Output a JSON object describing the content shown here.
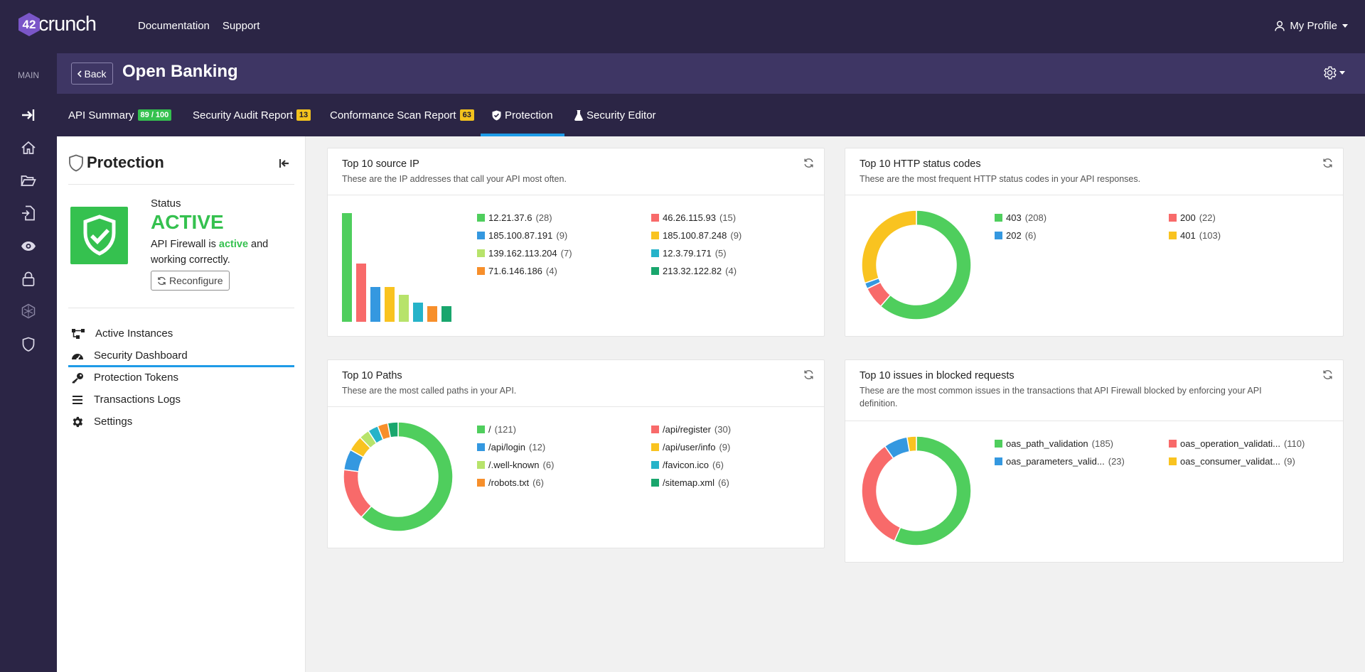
{
  "brand": {
    "logo_mark": "42",
    "logo_text": "crunch"
  },
  "topnav": {
    "documentation": "Documentation",
    "support": "Support",
    "profile": "My Profile"
  },
  "rail": {
    "main_label": "MAIN"
  },
  "header": {
    "back": "Back",
    "title": "Open Banking"
  },
  "tabs": [
    {
      "label": "API Summary",
      "badge": "89 / 100"
    },
    {
      "label": "Security Audit Report",
      "badge": "13"
    },
    {
      "label": "Conformance Scan Report",
      "badge": "63"
    },
    {
      "label": "Protection"
    },
    {
      "label": "Security Editor"
    }
  ],
  "side": {
    "title": "Protection",
    "status_label": "Status",
    "status_value": "ACTIVE",
    "desc_pre": "API Firewall is ",
    "desc_em": "active",
    "desc_post": " and working correctly.",
    "reconfigure": "Reconfigure",
    "menu": [
      "Active Instances",
      "Security Dashboard",
      "Protection Tokens",
      "Transactions Logs",
      "Settings"
    ]
  },
  "cards": {
    "ip": {
      "title": "Top 10 source IP",
      "sub": "These are the IP addresses that call your API most often."
    },
    "http": {
      "title": "Top 10 HTTP status codes",
      "sub": "These are the most frequent HTTP status codes in your API responses."
    },
    "paths": {
      "title": "Top 10 Paths",
      "sub": "These are the most called paths in your API."
    },
    "issues": {
      "title": "Top 10 issues in blocked requests",
      "sub": "These are the most common issues in the transactions that API Firewall blocked by enforcing your API definition."
    }
  },
  "colors": {
    "green": "#4fce5d",
    "red": "#f86a6a",
    "blue": "#3498e0",
    "yellow": "#f9c320",
    "lime": "#b7e36b",
    "teal": "#26b3c9",
    "orange": "#f78f2b",
    "dkgreen": "#19a66d",
    "accent": "#1e9be7"
  },
  "chart_data": [
    {
      "type": "bar",
      "title": "Top 10 source IP",
      "categories": [
        "12.21.37.6",
        "46.26.115.93",
        "185.100.87.191",
        "185.100.87.248",
        "139.162.113.204",
        "12.3.79.171",
        "71.6.146.186",
        "213.32.122.82"
      ],
      "values": [
        28,
        15,
        9,
        9,
        7,
        5,
        4,
        4
      ],
      "colors": [
        "#4fce5d",
        "#f86a6a",
        "#3498e0",
        "#f9c320",
        "#b7e36b",
        "#26b3c9",
        "#f78f2b",
        "#19a66d"
      ]
    },
    {
      "type": "pie",
      "title": "Top 10 HTTP status codes",
      "categories": [
        "403",
        "200",
        "202",
        "401"
      ],
      "values": [
        208,
        22,
        6,
        103
      ],
      "colors": [
        "#4fce5d",
        "#f86a6a",
        "#3498e0",
        "#f9c320"
      ]
    },
    {
      "type": "pie",
      "title": "Top 10 Paths",
      "categories": [
        "/",
        "/api/register",
        "/api/login",
        "/api/user/info",
        "/.well-known",
        "/favicon.ico",
        "/robots.txt",
        "/sitemap.xml"
      ],
      "values": [
        121,
        30,
        12,
        9,
        6,
        6,
        6,
        6
      ],
      "colors": [
        "#4fce5d",
        "#f86a6a",
        "#3498e0",
        "#f9c320",
        "#b7e36b",
        "#26b3c9",
        "#f78f2b",
        "#19a66d"
      ]
    },
    {
      "type": "pie",
      "title": "Top 10 issues in blocked requests",
      "categories": [
        "oas_path_validation",
        "oas_operation_validati...",
        "oas_parameters_valid...",
        "oas_consumer_validat..."
      ],
      "values": [
        185,
        110,
        23,
        9
      ],
      "colors": [
        "#4fce5d",
        "#f86a6a",
        "#3498e0",
        "#f9c320"
      ]
    }
  ]
}
